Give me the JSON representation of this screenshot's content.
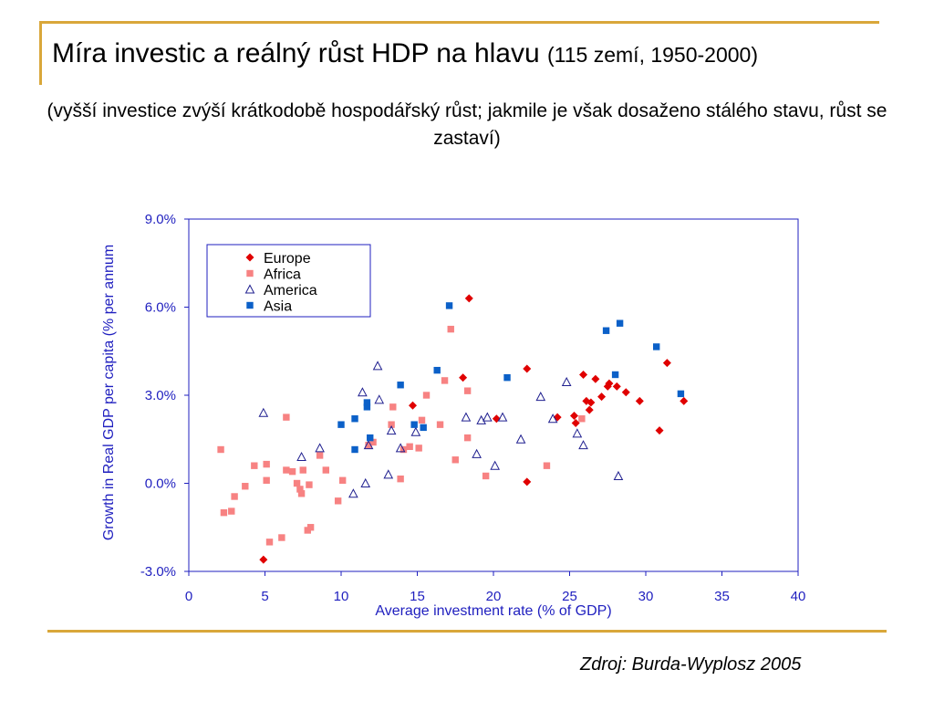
{
  "header": {
    "title": "Míra investic a reálný růst HDP na hlavu",
    "title_paren": "(115 zemí, 1950-2000)",
    "subtitle": "(vyšší investice zvýší krátkodobě hospodářský růst; jakmile je však dosaženo stálého stavu, růst se zastaví)"
  },
  "source": "Zdroj: Burda-Wyplosz 2005",
  "colors": {
    "accent_rule": "#d9a73a",
    "axis_blue": "#1f1fbf",
    "europe": "#e00000",
    "africa": "#f78282",
    "america": "#1f1f8f",
    "asia": "#0b60c8"
  },
  "chart_data": {
    "type": "scatter",
    "xlabel": "Average investment rate (% of GDP)",
    "ylabel": "Growth in Real GDP per capita (% per annum",
    "xlim": [
      0,
      40
    ],
    "ylim": [
      -3,
      9
    ],
    "xticks": [
      "0",
      "5",
      "10",
      "15",
      "20",
      "25",
      "30",
      "35",
      "40"
    ],
    "yticks": [
      "-3.0%",
      "0.0%",
      "3.0%",
      "6.0%",
      "9.0%"
    ],
    "legend_position": "top-left",
    "grid": false,
    "series": [
      {
        "name": "Europe",
        "marker": "diamond",
        "points": [
          [
            4.9,
            -2.6
          ],
          [
            14.7,
            2.65
          ],
          [
            18,
            3.6
          ],
          [
            18.4,
            6.3
          ],
          [
            20.2,
            2.2
          ],
          [
            22.2,
            3.9
          ],
          [
            22.2,
            0.05
          ],
          [
            24.2,
            2.25
          ],
          [
            25.3,
            2.3
          ],
          [
            25.4,
            2.05
          ],
          [
            25.9,
            3.7
          ],
          [
            26.1,
            2.8
          ],
          [
            26.3,
            2.5
          ],
          [
            26.4,
            2.75
          ],
          [
            26.7,
            3.55
          ],
          [
            27.1,
            2.95
          ],
          [
            27.5,
            3.3
          ],
          [
            27.6,
            3.4
          ],
          [
            28.1,
            3.3
          ],
          [
            28.7,
            3.1
          ],
          [
            29.6,
            2.8
          ],
          [
            30.9,
            1.8
          ],
          [
            31.4,
            4.1
          ],
          [
            32.5,
            2.8
          ]
        ]
      },
      {
        "name": "Africa",
        "marker": "square",
        "points": [
          [
            2.1,
            1.15
          ],
          [
            2.3,
            -1
          ],
          [
            2.8,
            -0.95
          ],
          [
            3,
            -0.45
          ],
          [
            3.7,
            -0.1
          ],
          [
            4.3,
            0.6
          ],
          [
            5.1,
            0.65
          ],
          [
            5.1,
            0.1
          ],
          [
            5.3,
            -2
          ],
          [
            6.1,
            -1.85
          ],
          [
            6.4,
            2.25
          ],
          [
            6.4,
            0.45
          ],
          [
            6.8,
            0.4
          ],
          [
            7.1,
            0
          ],
          [
            7.3,
            -0.2
          ],
          [
            7.4,
            -0.35
          ],
          [
            7.5,
            0.45
          ],
          [
            7.8,
            -1.6
          ],
          [
            7.9,
            -0.05
          ],
          [
            8,
            -1.5
          ],
          [
            8.6,
            0.95
          ],
          [
            9,
            0.45
          ],
          [
            9.8,
            -0.6
          ],
          [
            10.1,
            0.1
          ],
          [
            11.8,
            1.3
          ],
          [
            12.1,
            1.4
          ],
          [
            13.3,
            2
          ],
          [
            13.4,
            2.6
          ],
          [
            13.9,
            0.15
          ],
          [
            14.1,
            1.15
          ],
          [
            14.5,
            1.25
          ],
          [
            15.1,
            1.2
          ],
          [
            15.3,
            2.15
          ],
          [
            15.6,
            3
          ],
          [
            16.5,
            2
          ],
          [
            16.8,
            3.5
          ],
          [
            17.2,
            5.25
          ],
          [
            17.5,
            0.8
          ],
          [
            18.3,
            3.15
          ],
          [
            18.3,
            1.55
          ],
          [
            19.5,
            0.25
          ],
          [
            23.5,
            0.6
          ],
          [
            25.8,
            2.2
          ]
        ]
      },
      {
        "name": "America",
        "marker": "triangle",
        "points": [
          [
            4.9,
            2.4
          ],
          [
            7.4,
            0.9
          ],
          [
            8.6,
            1.2
          ],
          [
            10.8,
            -0.35
          ],
          [
            11.4,
            3.1
          ],
          [
            11.6,
            0
          ],
          [
            11.8,
            1.3
          ],
          [
            12.4,
            4
          ],
          [
            12.5,
            2.85
          ],
          [
            13.1,
            0.3
          ],
          [
            13.3,
            1.8
          ],
          [
            13.9,
            1.2
          ],
          [
            14.9,
            1.75
          ],
          [
            18.2,
            2.25
          ],
          [
            18.9,
            1
          ],
          [
            19.2,
            2.15
          ],
          [
            19.6,
            2.25
          ],
          [
            20.1,
            0.6
          ],
          [
            20.6,
            2.25
          ],
          [
            21.8,
            1.5
          ],
          [
            23.1,
            2.95
          ],
          [
            23.9,
            2.2
          ],
          [
            24.8,
            3.45
          ],
          [
            25.5,
            1.7
          ],
          [
            25.9,
            1.3
          ],
          [
            28.2,
            0.25
          ]
        ]
      },
      {
        "name": "Asia",
        "marker": "square",
        "points": [
          [
            10,
            2
          ],
          [
            10.9,
            2.2
          ],
          [
            10.9,
            1.15
          ],
          [
            11.7,
            2.6
          ],
          [
            11.7,
            2.75
          ],
          [
            11.9,
            1.55
          ],
          [
            13.9,
            3.35
          ],
          [
            14.8,
            2
          ],
          [
            15.4,
            1.9
          ],
          [
            16.3,
            3.85
          ],
          [
            17.1,
            6.05
          ],
          [
            20.9,
            3.6
          ],
          [
            27.4,
            5.2
          ],
          [
            28,
            3.7
          ],
          [
            28.3,
            5.45
          ],
          [
            30.7,
            4.65
          ],
          [
            32.3,
            3.05
          ]
        ]
      }
    ]
  }
}
